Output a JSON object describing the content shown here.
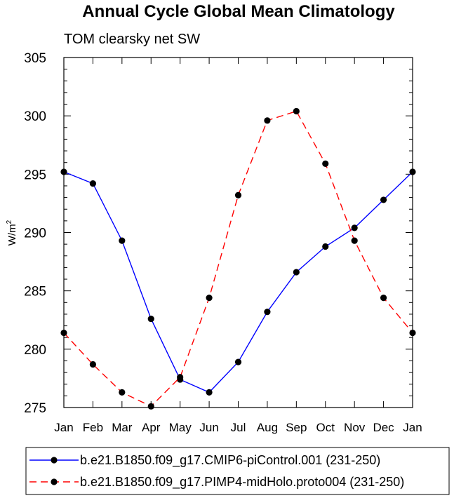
{
  "chart_data": {
    "type": "line",
    "title": "Annual Cycle Global Mean Climatology",
    "subtitle": "TOM clearsky net SW",
    "xlabel": "",
    "ylabel": "W/m",
    "ylabel_sup": "2",
    "categories": [
      "Jan",
      "Feb",
      "Mar",
      "Apr",
      "May",
      "Jun",
      "Jul",
      "Aug",
      "Sep",
      "Oct",
      "Nov",
      "Dec",
      "Jan"
    ],
    "ylim": [
      275,
      305
    ],
    "yticks": [
      275,
      280,
      285,
      290,
      295,
      300,
      305
    ],
    "series": [
      {
        "name": "b.e21.B1850.f09_g17.CMIP6-piControl.001 (231-250)",
        "color": "#0000ff",
        "dash": "solid",
        "values": [
          295.2,
          294.2,
          289.3,
          282.6,
          277.4,
          276.3,
          278.9,
          283.2,
          286.6,
          288.8,
          290.4,
          292.8,
          295.2
        ]
      },
      {
        "name": "b.e21.B1850.f09_g17.PIMP4-midHolo.proto004 (231-250)",
        "color": "#ff0000",
        "dash": "dashed",
        "values": [
          281.4,
          278.7,
          276.3,
          275.1,
          277.6,
          284.4,
          293.2,
          299.6,
          300.4,
          295.9,
          289.3,
          284.4,
          281.4
        ]
      }
    ]
  }
}
